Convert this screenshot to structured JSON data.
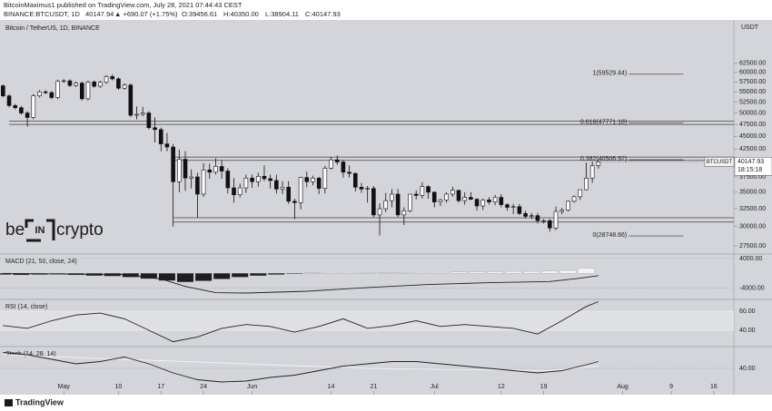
{
  "header": {
    "title": "BitcoinMaximus1 published on TradingView.com, July 28, 2021 07:44:43 CEST",
    "symbol": "BINANCE:BTCUSDT, 1D",
    "last": "40147.94",
    "change": "▲ +690.07 (+1.75%)",
    "ohlc": [
      "O:39456.61",
      "H:40350.00",
      "L:38904.11",
      "C:40147.93"
    ]
  },
  "watermark": [
    "be",
    "IN",
    "crypto"
  ],
  "footer": "TradingView",
  "chart_data": {
    "type": "candlestick",
    "title": "Bitcoin / TetherUS, 1D, BINANCE",
    "unit": "USDT",
    "log_scale": true,
    "up_color": "#ffffff",
    "down_color": "#111111",
    "xlim": [
      -0.5,
      120.3
    ],
    "xticks": [
      {
        "value": 10,
        "label": "May"
      },
      {
        "value": 19,
        "label": "10"
      },
      {
        "value": 26,
        "label": "17"
      },
      {
        "value": 33,
        "label": "24"
      },
      {
        "value": 41,
        "label": "Jun"
      },
      {
        "value": 54,
        "label": "14"
      },
      {
        "value": 61,
        "label": "21"
      },
      {
        "value": 71,
        "label": "Jul"
      },
      {
        "value": 82,
        "label": "12"
      },
      {
        "value": 89,
        "label": "19"
      },
      {
        "value": 102,
        "label": "Aug"
      },
      {
        "value": 110,
        "label": "9"
      },
      {
        "value": 117,
        "label": "16"
      }
    ],
    "ylim": [
      26500,
      76000
    ],
    "yticks": [
      {
        "value": 27500,
        "label": "27500.00"
      },
      {
        "value": 30000,
        "label": "30000.00"
      },
      {
        "value": 32500,
        "label": "32500.00"
      },
      {
        "value": 35000,
        "label": "35000.00"
      },
      {
        "value": 37500,
        "label": "37500.00"
      },
      {
        "value": 42500,
        "label": "42500.00"
      },
      {
        "value": 45000,
        "label": "45000.00"
      },
      {
        "value": 47500,
        "label": "47500.00"
      },
      {
        "value": 50000,
        "label": "50000.00"
      },
      {
        "value": 52500,
        "label": "52500.00"
      },
      {
        "value": 55000,
        "label": "55000.00"
      },
      {
        "value": 57500,
        "label": "57500.00"
      },
      {
        "value": 60000,
        "label": "60000.00"
      },
      {
        "value": 62500,
        "label": "62500.00"
      }
    ],
    "open": [
      56500,
      54000,
      51700,
      51200,
      50000,
      49000,
      54000,
      55000,
      54800,
      53600,
      57700,
      57800,
      56600,
      57200,
      53300,
      57500,
      56400,
      57400,
      58900,
      58300,
      55900,
      56700,
      49500,
      49700,
      50000,
      46800,
      46400,
      43500,
      42900,
      36700,
      40600,
      37300,
      37500,
      34700,
      38700,
      38300,
      39300,
      38500,
      35700,
      34600,
      35700,
      37300,
      36700,
      37600,
      37200,
      36900,
      35500,
      35800,
      33600,
      33400,
      37400,
      36700,
      37300,
      35600,
      39000,
      40500,
      40100,
      38300,
      38100,
      35800,
      35500,
      35600,
      31600,
      32500,
      33700,
      34700,
      31600,
      32200,
      34700,
      34500,
      35900,
      35000,
      33500,
      33800,
      34700,
      35300,
      33700,
      34200,
      33900,
      32900,
      33800,
      33500,
      34200,
      33100,
      32700,
      32800,
      31800,
      31400,
      31500,
      30800,
      30800,
      29800,
      32100,
      32300,
      33600,
      34300,
      35400,
      37300,
      39456.61
    ],
    "high": [
      56900,
      54400,
      52100,
      51600,
      50400,
      54400,
      55400,
      55400,
      55200,
      58100,
      58200,
      58200,
      57600,
      57600,
      57900,
      57900,
      57800,
      59300,
      59500,
      58700,
      57100,
      57100,
      51500,
      51400,
      50400,
      49000,
      46800,
      45700,
      43500,
      42400,
      42100,
      38800,
      38200,
      39900,
      39800,
      40800,
      40400,
      39000,
      37300,
      36400,
      37900,
      37900,
      38200,
      39500,
      37900,
      37900,
      36800,
      36800,
      34000,
      37500,
      38400,
      37700,
      37500,
      39400,
      41000,
      41300,
      40500,
      39500,
      38200,
      36500,
      36000,
      36000,
      33300,
      34900,
      35500,
      35500,
      32700,
      34700,
      35300,
      36600,
      36100,
      35100,
      34000,
      35000,
      35900,
      35400,
      35000,
      35000,
      34100,
      34000,
      34200,
      34600,
      34700,
      33300,
      33200,
      33200,
      32200,
      31900,
      31900,
      31000,
      31000,
      32800,
      32600,
      33700,
      34500,
      35400,
      40000,
      40200,
      40350
    ],
    "low": [
      53600,
      51300,
      50800,
      49600,
      47000,
      48600,
      53600,
      54400,
      53200,
      53200,
      57300,
      56200,
      56200,
      52900,
      52900,
      56000,
      56000,
      57000,
      57900,
      55500,
      55500,
      49100,
      48600,
      49300,
      46400,
      43800,
      42100,
      42100,
      30000,
      35000,
      35200,
      35600,
      31200,
      34300,
      37200,
      37900,
      37200,
      34800,
      33400,
      34200,
      34900,
      35700,
      35900,
      36800,
      35600,
      34800,
      34700,
      33200,
      31000,
      32400,
      35800,
      36100,
      34700,
      34800,
      38800,
      39600,
      37400,
      37400,
      35100,
      34900,
      33400,
      31300,
      28800,
      32000,
      32700,
      31300,
      30200,
      32000,
      33900,
      34000,
      34000,
      32700,
      32900,
      33400,
      34300,
      33400,
      33100,
      33800,
      32200,
      32300,
      33100,
      33000,
      32700,
      32200,
      31700,
      31600,
      31100,
      31000,
      30400,
      30400,
      29300,
      29500,
      31700,
      32100,
      33400,
      33800,
      35300,
      36500,
      38904.11
    ],
    "close": [
      54000,
      51700,
      51200,
      50000,
      49000,
      54000,
      55000,
      54800,
      53600,
      57700,
      57800,
      56600,
      57200,
      53300,
      57500,
      56400,
      57400,
      58900,
      58300,
      55900,
      56700,
      49500,
      49700,
      50000,
      46800,
      46400,
      43500,
      42900,
      36700,
      40600,
      37300,
      37500,
      34700,
      38700,
      38300,
      39300,
      38500,
      35700,
      34600,
      35700,
      37300,
      36700,
      37600,
      37200,
      36900,
      35500,
      35800,
      33600,
      33400,
      37400,
      36700,
      37300,
      35600,
      39000,
      40500,
      40100,
      38300,
      38100,
      35800,
      35500,
      35600,
      31600,
      32500,
      33700,
      34700,
      31600,
      32200,
      34700,
      34500,
      35900,
      35000,
      33500,
      33800,
      34700,
      35300,
      33700,
      34200,
      33900,
      32900,
      33800,
      33500,
      34200,
      33100,
      32700,
      32800,
      31800,
      31400,
      31500,
      30800,
      30800,
      29800,
      32100,
      32300,
      33600,
      34300,
      35400,
      37300,
      39457.86,
      40147.93
    ],
    "symbol_label": "BTCUSDT",
    "countdown": "18:15:18",
    "levels": [
      {
        "value": 48200,
        "from": 1
      },
      {
        "value": 47500,
        "from": 1
      },
      {
        "value": 41000,
        "from": 28
      },
      {
        "value": 40400,
        "from": 28
      },
      {
        "value": 31200,
        "from": 28
      },
      {
        "value": 30600,
        "from": 28
      }
    ],
    "fib_levels": [
      {
        "value": 59529.44,
        "label": "1(59529.44)"
      },
      {
        "value": 47771.18,
        "label": "0.618(47771.18)"
      },
      {
        "value": 40506.92,
        "label": "0.382(40506.92)"
      },
      {
        "value": 28748.66,
        "label": "0(28748.66)"
      }
    ],
    "fib_from": 103,
    "fib_to": 112,
    "indicators": [
      {
        "title": "MACD (21, 50, close, 24)",
        "ylim": [
          -7000,
          5200
        ],
        "yticks": [
          {
            "value": 4000,
            "label": "4000.00"
          },
          {
            "value": -4000,
            "label": "-4000.00"
          }
        ],
        "series": [
          {
            "kind": "histogram",
            "color": "#1e1e1e",
            "positive_color": "#f4f4f4",
            "x": [
              0,
              3,
              6,
              9,
              12,
              15,
              18,
              21,
              24,
              27,
              30,
              33,
              36,
              39,
              42,
              45,
              48,
              51,
              54,
              57,
              60,
              63,
              66,
              69,
              72,
              75,
              78,
              81,
              84,
              87,
              90,
              93,
              96
            ],
            "values": [
              -300,
              -400,
              -300,
              -200,
              -400,
              -600,
              -700,
              -1000,
              -1400,
              -1900,
              -2300,
              -2000,
              -1500,
              -1000,
              -600,
              -300,
              -100,
              100,
              300,
              300,
              200,
              150,
              200,
              300,
              300,
              350,
              400,
              450,
              500,
              500,
              600,
              800,
              1400
            ]
          },
          {
            "kind": "line",
            "color": "#222222",
            "x": [
              0,
              10,
              20,
              26,
              30,
              35,
              40,
              50,
              60,
              70,
              80,
              90,
              95,
              98
            ],
            "values": [
              0,
              -200,
              -300,
              -1500,
              -3500,
              -5200,
              -5300,
              -4800,
              -3800,
              -3000,
              -2500,
              -2200,
              -1300,
              -600
            ]
          }
        ]
      },
      {
        "title": "RSI (14, close)",
        "ylim": [
          22.9,
          72.4
        ],
        "band": [
          40,
          60
        ],
        "yticks": [
          {
            "value": 60,
            "label": "60.00"
          },
          {
            "value": 40,
            "label": "40.00"
          }
        ],
        "series": [
          {
            "kind": "line",
            "color": "#222222",
            "x": [
              0,
              4,
              8,
              12,
              16,
              20,
              24,
              28,
              32,
              36,
              40,
              44,
              48,
              52,
              56,
              60,
              64,
              68,
              72,
              76,
              80,
              84,
              88,
              92,
              96,
              98
            ],
            "values": [
              45,
              42,
              50,
              56,
              58,
              52,
              40,
              28,
              33,
              42,
              46,
              44,
              38,
              44,
              52,
              42,
              45,
              50,
              44,
              46,
              44,
              42,
              36,
              50,
              65,
              70
            ]
          }
        ]
      },
      {
        "title": "Stoch (14, 28, 14)",
        "ylim": [
          -14,
          88
        ],
        "yticks": [
          {
            "value": 40,
            "label": "40.00"
          }
        ],
        "series": [
          {
            "kind": "line",
            "color": "#f2f2f2",
            "x": [
              0,
              30,
              60,
              90,
              98
            ],
            "values": [
              70,
              55,
              40,
              35,
              45
            ]
          },
          {
            "kind": "line",
            "color": "#222222",
            "x": [
              0,
              4,
              8,
              12,
              16,
              20,
              24,
              28,
              32,
              36,
              40,
              44,
              48,
              52,
              56,
              60,
              64,
              68,
              72,
              76,
              80,
              84,
              88,
              92,
              96,
              98
            ],
            "values": [
              75,
              70,
              60,
              50,
              55,
              65,
              50,
              30,
              15,
              10,
              12,
              20,
              25,
              35,
              45,
              50,
              55,
              55,
              50,
              45,
              40,
              35,
              30,
              35,
              48,
              55
            ]
          }
        ]
      }
    ]
  }
}
